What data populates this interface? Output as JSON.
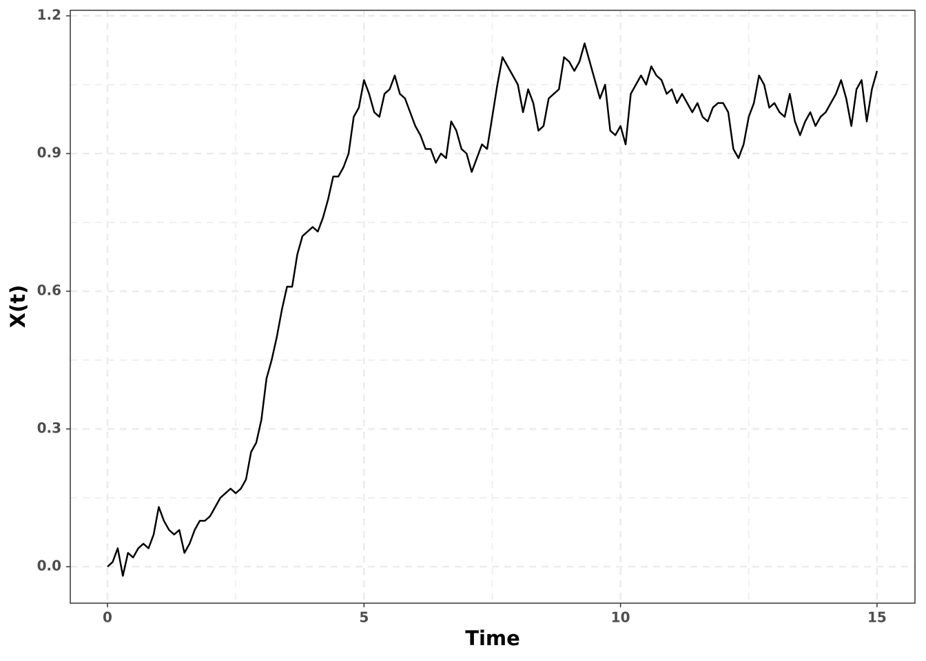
{
  "chart_data": {
    "type": "line",
    "x_label": "Time",
    "y_label": "X(t)",
    "x": [
      0,
      0.1,
      0.2,
      0.3,
      0.4,
      0.5,
      0.6,
      0.7,
      0.8,
      0.9,
      1,
      1.1,
      1.2,
      1.3,
      1.4,
      1.5,
      1.6,
      1.7,
      1.8,
      1.9,
      2,
      2.1,
      2.2,
      2.3,
      2.4,
      2.5,
      2.6,
      2.7,
      2.8,
      2.9,
      3,
      3.1,
      3.2,
      3.3,
      3.4,
      3.5,
      3.6,
      3.7,
      3.8,
      3.9,
      4,
      4.1,
      4.2,
      4.3,
      4.4,
      4.5,
      4.6,
      4.7,
      4.8,
      4.9,
      5,
      5.1,
      5.2,
      5.3,
      5.4,
      5.5,
      5.6,
      5.7,
      5.8,
      5.9,
      6,
      6.1,
      6.2,
      6.3,
      6.4,
      6.5,
      6.6,
      6.7,
      6.8,
      6.9,
      7,
      7.1,
      7.2,
      7.3,
      7.4,
      7.5,
      7.6,
      7.7,
      7.8,
      7.9,
      8,
      8.1,
      8.2,
      8.3,
      8.4,
      8.5,
      8.6,
      8.7,
      8.8,
      8.9,
      9,
      9.1,
      9.2,
      9.3,
      9.4,
      9.5,
      9.6,
      9.7,
      9.8,
      9.9,
      10,
      10.1,
      10.2,
      10.3,
      10.4,
      10.5,
      10.6,
      10.7,
      10.8,
      10.9,
      11,
      11.1,
      11.2,
      11.3,
      11.4,
      11.5,
      11.6,
      11.7,
      11.8,
      11.9,
      12,
      12.1,
      12.2,
      12.3,
      12.4,
      12.5,
      12.6,
      12.7,
      12.8,
      12.9,
      13,
      13.1,
      13.2,
      13.3,
      13.4,
      13.5,
      13.6,
      13.7,
      13.8,
      13.9,
      14,
      14.1,
      14.2,
      14.3,
      14.4,
      14.5,
      14.6,
      14.7,
      14.8,
      14.9,
      15
    ],
    "values": [
      0,
      0.01,
      0.04,
      -0.02,
      0.03,
      0.02,
      0.04,
      0.05,
      0.04,
      0.07,
      0.13,
      0.1,
      0.08,
      0.07,
      0.08,
      0.03,
      0.05,
      0.08,
      0.1,
      0.1,
      0.11,
      0.13,
      0.15,
      0.16,
      0.17,
      0.16,
      0.17,
      0.19,
      0.25,
      0.27,
      0.32,
      0.41,
      0.45,
      0.5,
      0.56,
      0.61,
      0.61,
      0.68,
      0.72,
      0.73,
      0.74,
      0.73,
      0.76,
      0.8,
      0.85,
      0.85,
      0.87,
      0.9,
      0.98,
      1,
      1.06,
      1.03,
      0.99,
      0.98,
      1.03,
      1.04,
      1.07,
      1.03,
      1.02,
      0.99,
      0.96,
      0.94,
      0.91,
      0.91,
      0.88,
      0.9,
      0.89,
      0.97,
      0.95,
      0.91,
      0.9,
      0.86,
      0.89,
      0.92,
      0.91,
      0.98,
      1.05,
      1.11,
      1.09,
      1.07,
      1.05,
      0.99,
      1.04,
      1.01,
      0.95,
      0.96,
      1.02,
      1.03,
      1.04,
      1.11,
      1.1,
      1.08,
      1.1,
      1.14,
      1.1,
      1.06,
      1.02,
      1.05,
      0.95,
      0.94,
      0.96,
      0.92,
      1.03,
      1.05,
      1.07,
      1.05,
      1.09,
      1.07,
      1.06,
      1.03,
      1.04,
      1.01,
      1.03,
      1.01,
      0.99,
      1.01,
      0.98,
      0.97,
      1,
      1.01,
      1.01,
      0.99,
      0.91,
      0.89,
      0.92,
      0.98,
      1.01,
      1.07,
      1.05,
      1,
      1.01,
      0.99,
      0.98,
      1.03,
      0.97,
      0.94,
      0.97,
      0.99,
      0.96,
      0.98,
      0.99,
      1.01,
      1.03,
      1.06,
      1.02,
      0.96,
      1.04,
      1.06,
      0.97,
      1.04,
      1.08
    ],
    "color": "#000000",
    "xlim": [
      -0.725,
      15.74
    ],
    "xticks": [
      0,
      5,
      10,
      15
    ],
    "ylim": [
      -0.0795,
      1.212
    ],
    "yticks": [
      {
        "value": 0,
        "label": "0.0"
      },
      0.3,
      0.6,
      0.9,
      1.2
    ],
    "grid": true
  }
}
